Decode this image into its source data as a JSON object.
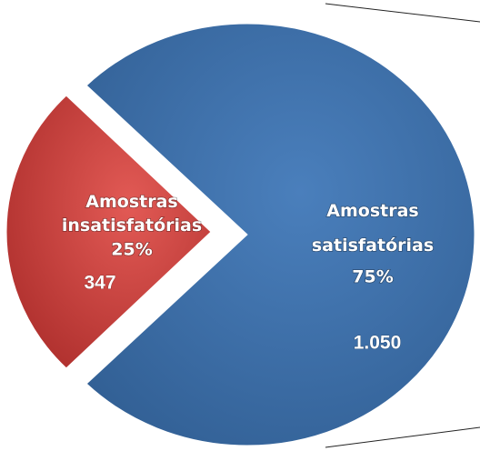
{
  "chart_data": {
    "type": "pie",
    "categories": [
      "Amostras insatisfatórias",
      "Amostras satisfatórias"
    ],
    "values": [
      25,
      75
    ],
    "value_labels": [
      "25%",
      "75%"
    ],
    "counts": [
      347,
      1050
    ],
    "count_labels": [
      "347",
      "1.050"
    ],
    "colors": [
      "#c8373a",
      "#3c6ea6"
    ],
    "exploded": 0
  }
}
